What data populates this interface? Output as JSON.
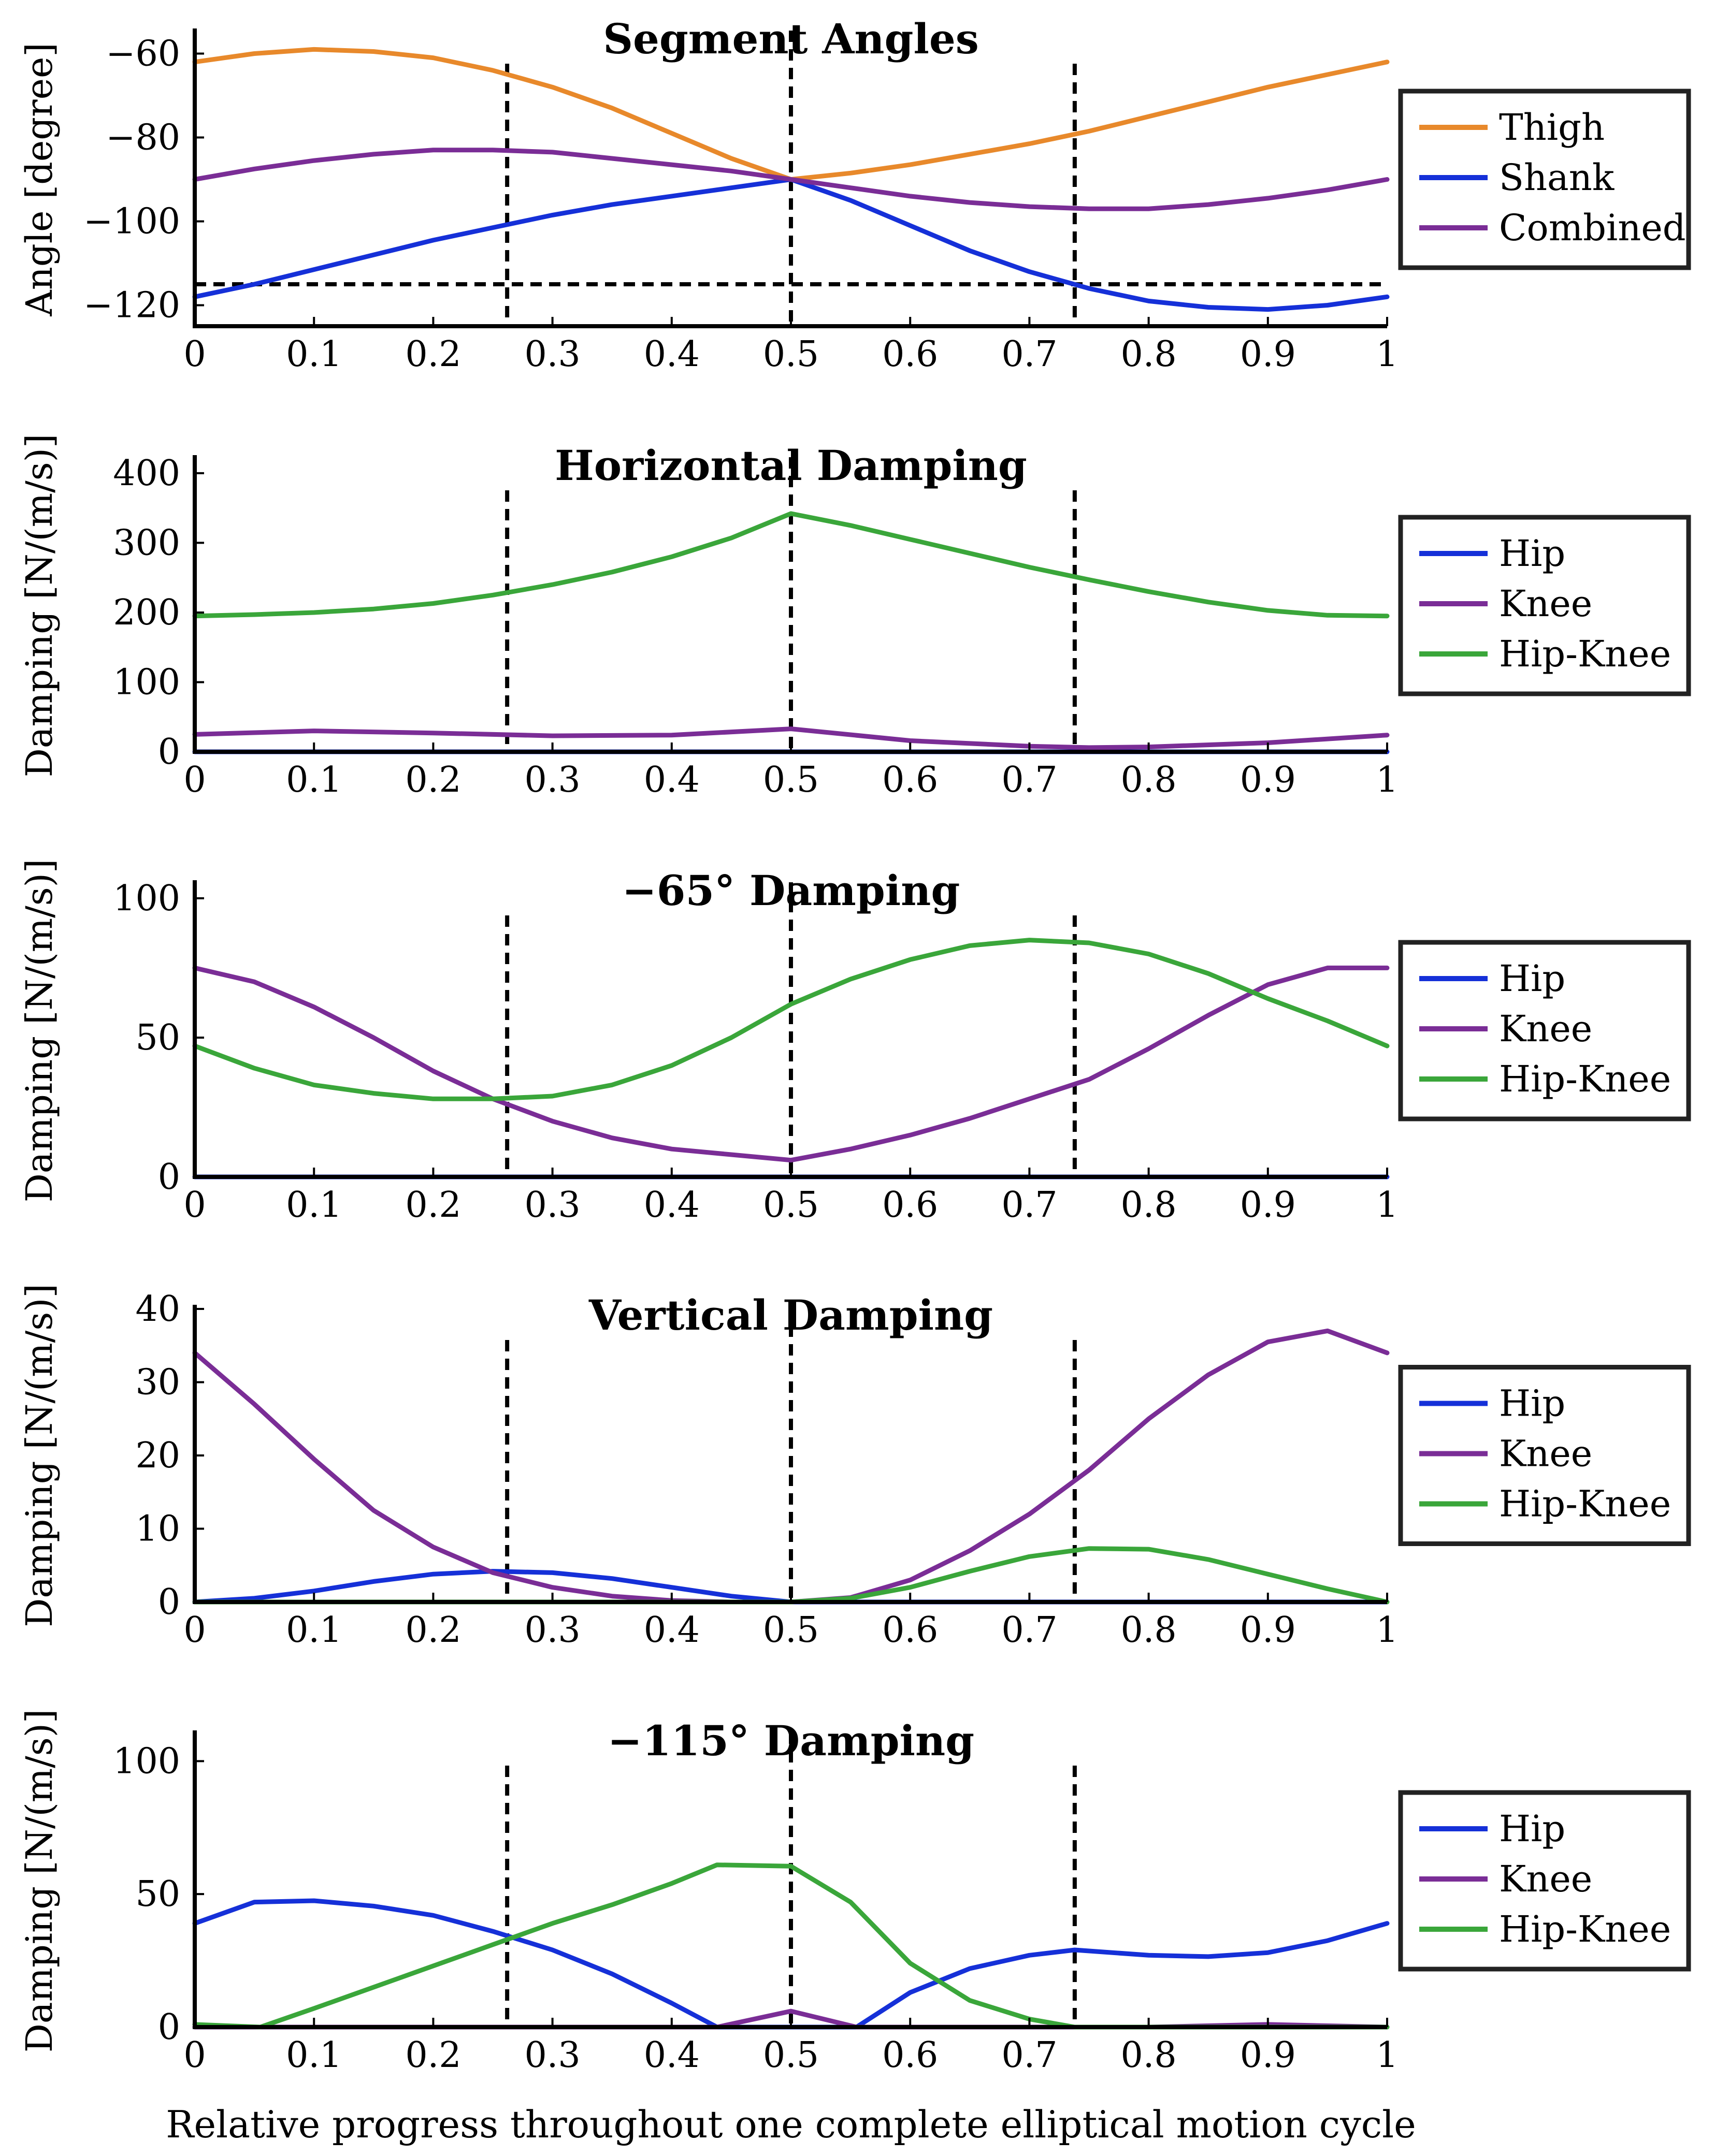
{
  "colors": {
    "Thigh": "#e8892b",
    "Shank": "#1530d8",
    "Combined": "#7a2d96",
    "Hip": "#1530d8",
    "Knee": "#7a2d96",
    "Hip-Knee": "#3aa63a"
  },
  "xlabel": "Relative progress throughout one complete elliptical motion cycle",
  "chart_data": [
    {
      "type": "line",
      "title": "Segment Angles",
      "ylabel": "Angle [degree]",
      "xlim": [
        0,
        1
      ],
      "ylim": [
        -125,
        -55
      ],
      "xticks": [
        0,
        0.1,
        0.2,
        0.3,
        0.4,
        0.5,
        0.6,
        0.7,
        0.8,
        0.9,
        1
      ],
      "xtick_labels": [
        "0",
        "0.1",
        "0.2",
        "0.3",
        "0.4",
        "0.5",
        "0.6",
        "0.7",
        "0.8",
        "0.9",
        "1"
      ],
      "yticks": [
        -60,
        -80,
        -100,
        -120
      ],
      "ytick_labels": [
        "−60",
        "−80",
        "−100",
        "−120"
      ],
      "vlines": [
        0.262,
        0.5,
        0.738
      ],
      "hline": -115,
      "series": [
        {
          "name": "Thigh",
          "x": [
            0,
            0.05,
            0.1,
            0.15,
            0.2,
            0.25,
            0.3,
            0.35,
            0.4,
            0.45,
            0.5,
            0.55,
            0.6,
            0.65,
            0.7,
            0.75,
            0.8,
            0.85,
            0.9,
            0.95,
            1
          ],
          "y": [
            -62,
            -60,
            -59,
            -59.5,
            -61,
            -64,
            -68,
            -73,
            -79,
            -85,
            -90,
            -88.5,
            -86.5,
            -84,
            -81.5,
            -78.5,
            -75,
            -71.5,
            -68,
            -65,
            -62
          ]
        },
        {
          "name": "Shank",
          "x": [
            0,
            0.05,
            0.1,
            0.15,
            0.2,
            0.25,
            0.3,
            0.35,
            0.4,
            0.45,
            0.5,
            0.55,
            0.6,
            0.65,
            0.7,
            0.75,
            0.8,
            0.85,
            0.9,
            0.95,
            1
          ],
          "y": [
            -118,
            -115,
            -111.5,
            -108,
            -104.5,
            -101.5,
            -98.5,
            -96,
            -94,
            -92,
            -90,
            -95,
            -101,
            -107,
            -112,
            -116,
            -119,
            -120.5,
            -121,
            -120,
            -118
          ]
        },
        {
          "name": "Combined",
          "x": [
            0,
            0.05,
            0.1,
            0.15,
            0.2,
            0.25,
            0.3,
            0.35,
            0.4,
            0.45,
            0.5,
            0.55,
            0.6,
            0.65,
            0.7,
            0.75,
            0.8,
            0.85,
            0.9,
            0.95,
            1
          ],
          "y": [
            -90,
            -87.5,
            -85.5,
            -84,
            -83,
            -83,
            -83.5,
            -85,
            -86.5,
            -88,
            -90,
            -92,
            -94,
            -95.5,
            -96.5,
            -97,
            -97,
            -96,
            -94.5,
            -92.5,
            -90
          ]
        }
      ]
    },
    {
      "type": "line",
      "title": "Horizontal Damping",
      "ylabel": "Damping [N/(m/s)]",
      "xlim": [
        0,
        1
      ],
      "ylim": [
        0,
        420
      ],
      "xticks": [
        0,
        0.1,
        0.2,
        0.3,
        0.4,
        0.5,
        0.6,
        0.7,
        0.8,
        0.9,
        1
      ],
      "xtick_labels": [
        "0",
        "0.1",
        "0.2",
        "0.3",
        "0.4",
        "0.5",
        "0.6",
        "0.7",
        "0.8",
        "0.9",
        "1"
      ],
      "yticks": [
        0,
        100,
        200,
        300,
        400
      ],
      "ytick_labels": [
        "0",
        "100",
        "200",
        "300",
        "400"
      ],
      "vlines": [
        0.262,
        0.5,
        0.738
      ],
      "series": [
        {
          "name": "Hip",
          "x": [
            0,
            0.5,
            1
          ],
          "y": [
            0,
            0,
            0
          ]
        },
        {
          "name": "Knee",
          "x": [
            0,
            0.1,
            0.2,
            0.3,
            0.4,
            0.5,
            0.6,
            0.7,
            0.75,
            0.8,
            0.9,
            1
          ],
          "y": [
            25,
            30,
            27,
            23,
            24,
            33,
            16,
            8,
            6,
            7,
            13,
            24
          ]
        },
        {
          "name": "Hip-Knee",
          "x": [
            0,
            0.05,
            0.1,
            0.15,
            0.2,
            0.25,
            0.3,
            0.35,
            0.4,
            0.45,
            0.5,
            0.55,
            0.6,
            0.65,
            0.7,
            0.75,
            0.8,
            0.85,
            0.9,
            0.95,
            1
          ],
          "y": [
            195,
            197,
            200,
            205,
            213,
            225,
            240,
            258,
            280,
            307,
            342,
            325,
            305,
            285,
            265,
            247,
            230,
            215,
            203,
            196,
            195
          ]
        }
      ]
    },
    {
      "type": "line",
      "title": "−65° Damping",
      "ylabel": "Damping [N/(m/s)]",
      "xlim": [
        0,
        1
      ],
      "ylim": [
        0,
        105
      ],
      "xticks": [
        0,
        0.1,
        0.2,
        0.3,
        0.4,
        0.5,
        0.6,
        0.7,
        0.8,
        0.9,
        1
      ],
      "xtick_labels": [
        "0",
        "0.1",
        "0.2",
        "0.3",
        "0.4",
        "0.5",
        "0.6",
        "0.7",
        "0.8",
        "0.9",
        "1"
      ],
      "yticks": [
        0,
        50,
        100
      ],
      "ytick_labels": [
        "0",
        "50",
        "100"
      ],
      "vlines": [
        0.262,
        0.5,
        0.738
      ],
      "series": [
        {
          "name": "Hip",
          "x": [
            0,
            0.5,
            1
          ],
          "y": [
            0,
            0,
            0
          ]
        },
        {
          "name": "Knee",
          "x": [
            0,
            0.05,
            0.1,
            0.15,
            0.2,
            0.25,
            0.3,
            0.35,
            0.4,
            0.45,
            0.5,
            0.55,
            0.6,
            0.65,
            0.7,
            0.75,
            0.8,
            0.85,
            0.9,
            0.95,
            1
          ],
          "y": [
            75,
            70,
            61,
            50,
            38,
            28,
            20,
            14,
            10,
            8,
            6,
            10,
            15,
            21,
            28,
            35,
            46,
            58,
            69,
            75,
            75
          ]
        },
        {
          "name": "Hip-Knee",
          "x": [
            0,
            0.05,
            0.1,
            0.15,
            0.2,
            0.25,
            0.3,
            0.35,
            0.4,
            0.45,
            0.5,
            0.55,
            0.6,
            0.65,
            0.7,
            0.75,
            0.8,
            0.85,
            0.9,
            0.95,
            1
          ],
          "y": [
            47,
            39,
            33,
            30,
            28,
            28,
            29,
            33,
            40,
            50,
            62,
            71,
            78,
            83,
            85,
            84,
            80,
            73,
            64,
            56,
            47
          ]
        }
      ]
    },
    {
      "type": "line",
      "title": "Vertical Damping",
      "ylabel": "Damping [N/(m/s)]",
      "xlim": [
        0,
        1
      ],
      "ylim": [
        0,
        40
      ],
      "xticks": [
        0,
        0.1,
        0.2,
        0.3,
        0.4,
        0.5,
        0.6,
        0.7,
        0.8,
        0.9,
        1
      ],
      "xtick_labels": [
        "0",
        "0.1",
        "0.2",
        "0.3",
        "0.4",
        "0.5",
        "0.6",
        "0.7",
        "0.8",
        "0.9",
        "1"
      ],
      "yticks": [
        0,
        10,
        20,
        30,
        40
      ],
      "ytick_labels": [
        "0",
        "10",
        "20",
        "30",
        "40"
      ],
      "vlines": [
        0.262,
        0.5,
        0.738
      ],
      "series": [
        {
          "name": "Hip",
          "x": [
            0,
            0.05,
            0.1,
            0.15,
            0.2,
            0.25,
            0.3,
            0.35,
            0.4,
            0.45,
            0.5,
            1
          ],
          "y": [
            0,
            0.5,
            1.5,
            2.8,
            3.8,
            4.2,
            4,
            3.2,
            2,
            0.8,
            0,
            0
          ]
        },
        {
          "name": "Knee",
          "x": [
            0,
            0.05,
            0.1,
            0.15,
            0.2,
            0.25,
            0.3,
            0.35,
            0.4,
            0.45,
            0.5,
            0.55,
            0.6,
            0.65,
            0.7,
            0.75,
            0.8,
            0.85,
            0.9,
            0.95,
            1
          ],
          "y": [
            34,
            27,
            19.5,
            12.5,
            7.5,
            4,
            2,
            0.8,
            0.2,
            0,
            0,
            0.6,
            3,
            7,
            12,
            18,
            25,
            31,
            35.5,
            37,
            34
          ]
        },
        {
          "name": "Hip-Knee",
          "x": [
            0,
            0.5,
            0.55,
            0.6,
            0.65,
            0.7,
            0.75,
            0.8,
            0.85,
            0.9,
            0.95,
            1
          ],
          "y": [
            0,
            0,
            0.5,
            2,
            4.2,
            6.2,
            7.3,
            7.2,
            5.8,
            3.8,
            1.8,
            0
          ]
        }
      ]
    },
    {
      "type": "line",
      "title": "−115° Damping",
      "ylabel": "Damping [N/(m/s)]",
      "xlim": [
        0,
        1
      ],
      "ylim": [
        0,
        110
      ],
      "xticks": [
        0,
        0.1,
        0.2,
        0.3,
        0.4,
        0.5,
        0.6,
        0.7,
        0.8,
        0.9,
        1
      ],
      "xtick_labels": [
        "0",
        "0.1",
        "0.2",
        "0.3",
        "0.4",
        "0.5",
        "0.6",
        "0.7",
        "0.8",
        "0.9",
        "1"
      ],
      "yticks": [
        0,
        50,
        100
      ],
      "ytick_labels": [
        "0",
        "50",
        "100"
      ],
      "vlines": [
        0.262,
        0.5,
        0.738
      ],
      "series": [
        {
          "name": "Hip",
          "x": [
            0,
            0.05,
            0.1,
            0.15,
            0.2,
            0.25,
            0.3,
            0.35,
            0.4,
            0.438,
            0.5,
            0.555,
            0.6,
            0.65,
            0.7,
            0.738,
            0.8,
            0.85,
            0.9,
            0.95,
            1
          ],
          "y": [
            39,
            47,
            47.5,
            45.5,
            42,
            36,
            29,
            20,
            9,
            0,
            0,
            0,
            13,
            22,
            27,
            29,
            27,
            26.5,
            28,
            32.5,
            39
          ]
        },
        {
          "name": "Knee",
          "x": [
            0,
            0.438,
            0.5,
            0.555,
            0.8,
            0.9,
            1
          ],
          "y": [
            0,
            0,
            6,
            0,
            0,
            1,
            0
          ]
        },
        {
          "name": "Hip-Knee",
          "x": [
            0,
            0.055,
            0.1,
            0.15,
            0.2,
            0.25,
            0.3,
            0.35,
            0.4,
            0.438,
            0.5,
            0.55,
            0.6,
            0.65,
            0.7,
            0.738,
            1
          ],
          "y": [
            1,
            0,
            7,
            15,
            23,
            31,
            39,
            46,
            54,
            61,
            60.5,
            47,
            24,
            10,
            3,
            0,
            0
          ]
        }
      ]
    }
  ]
}
